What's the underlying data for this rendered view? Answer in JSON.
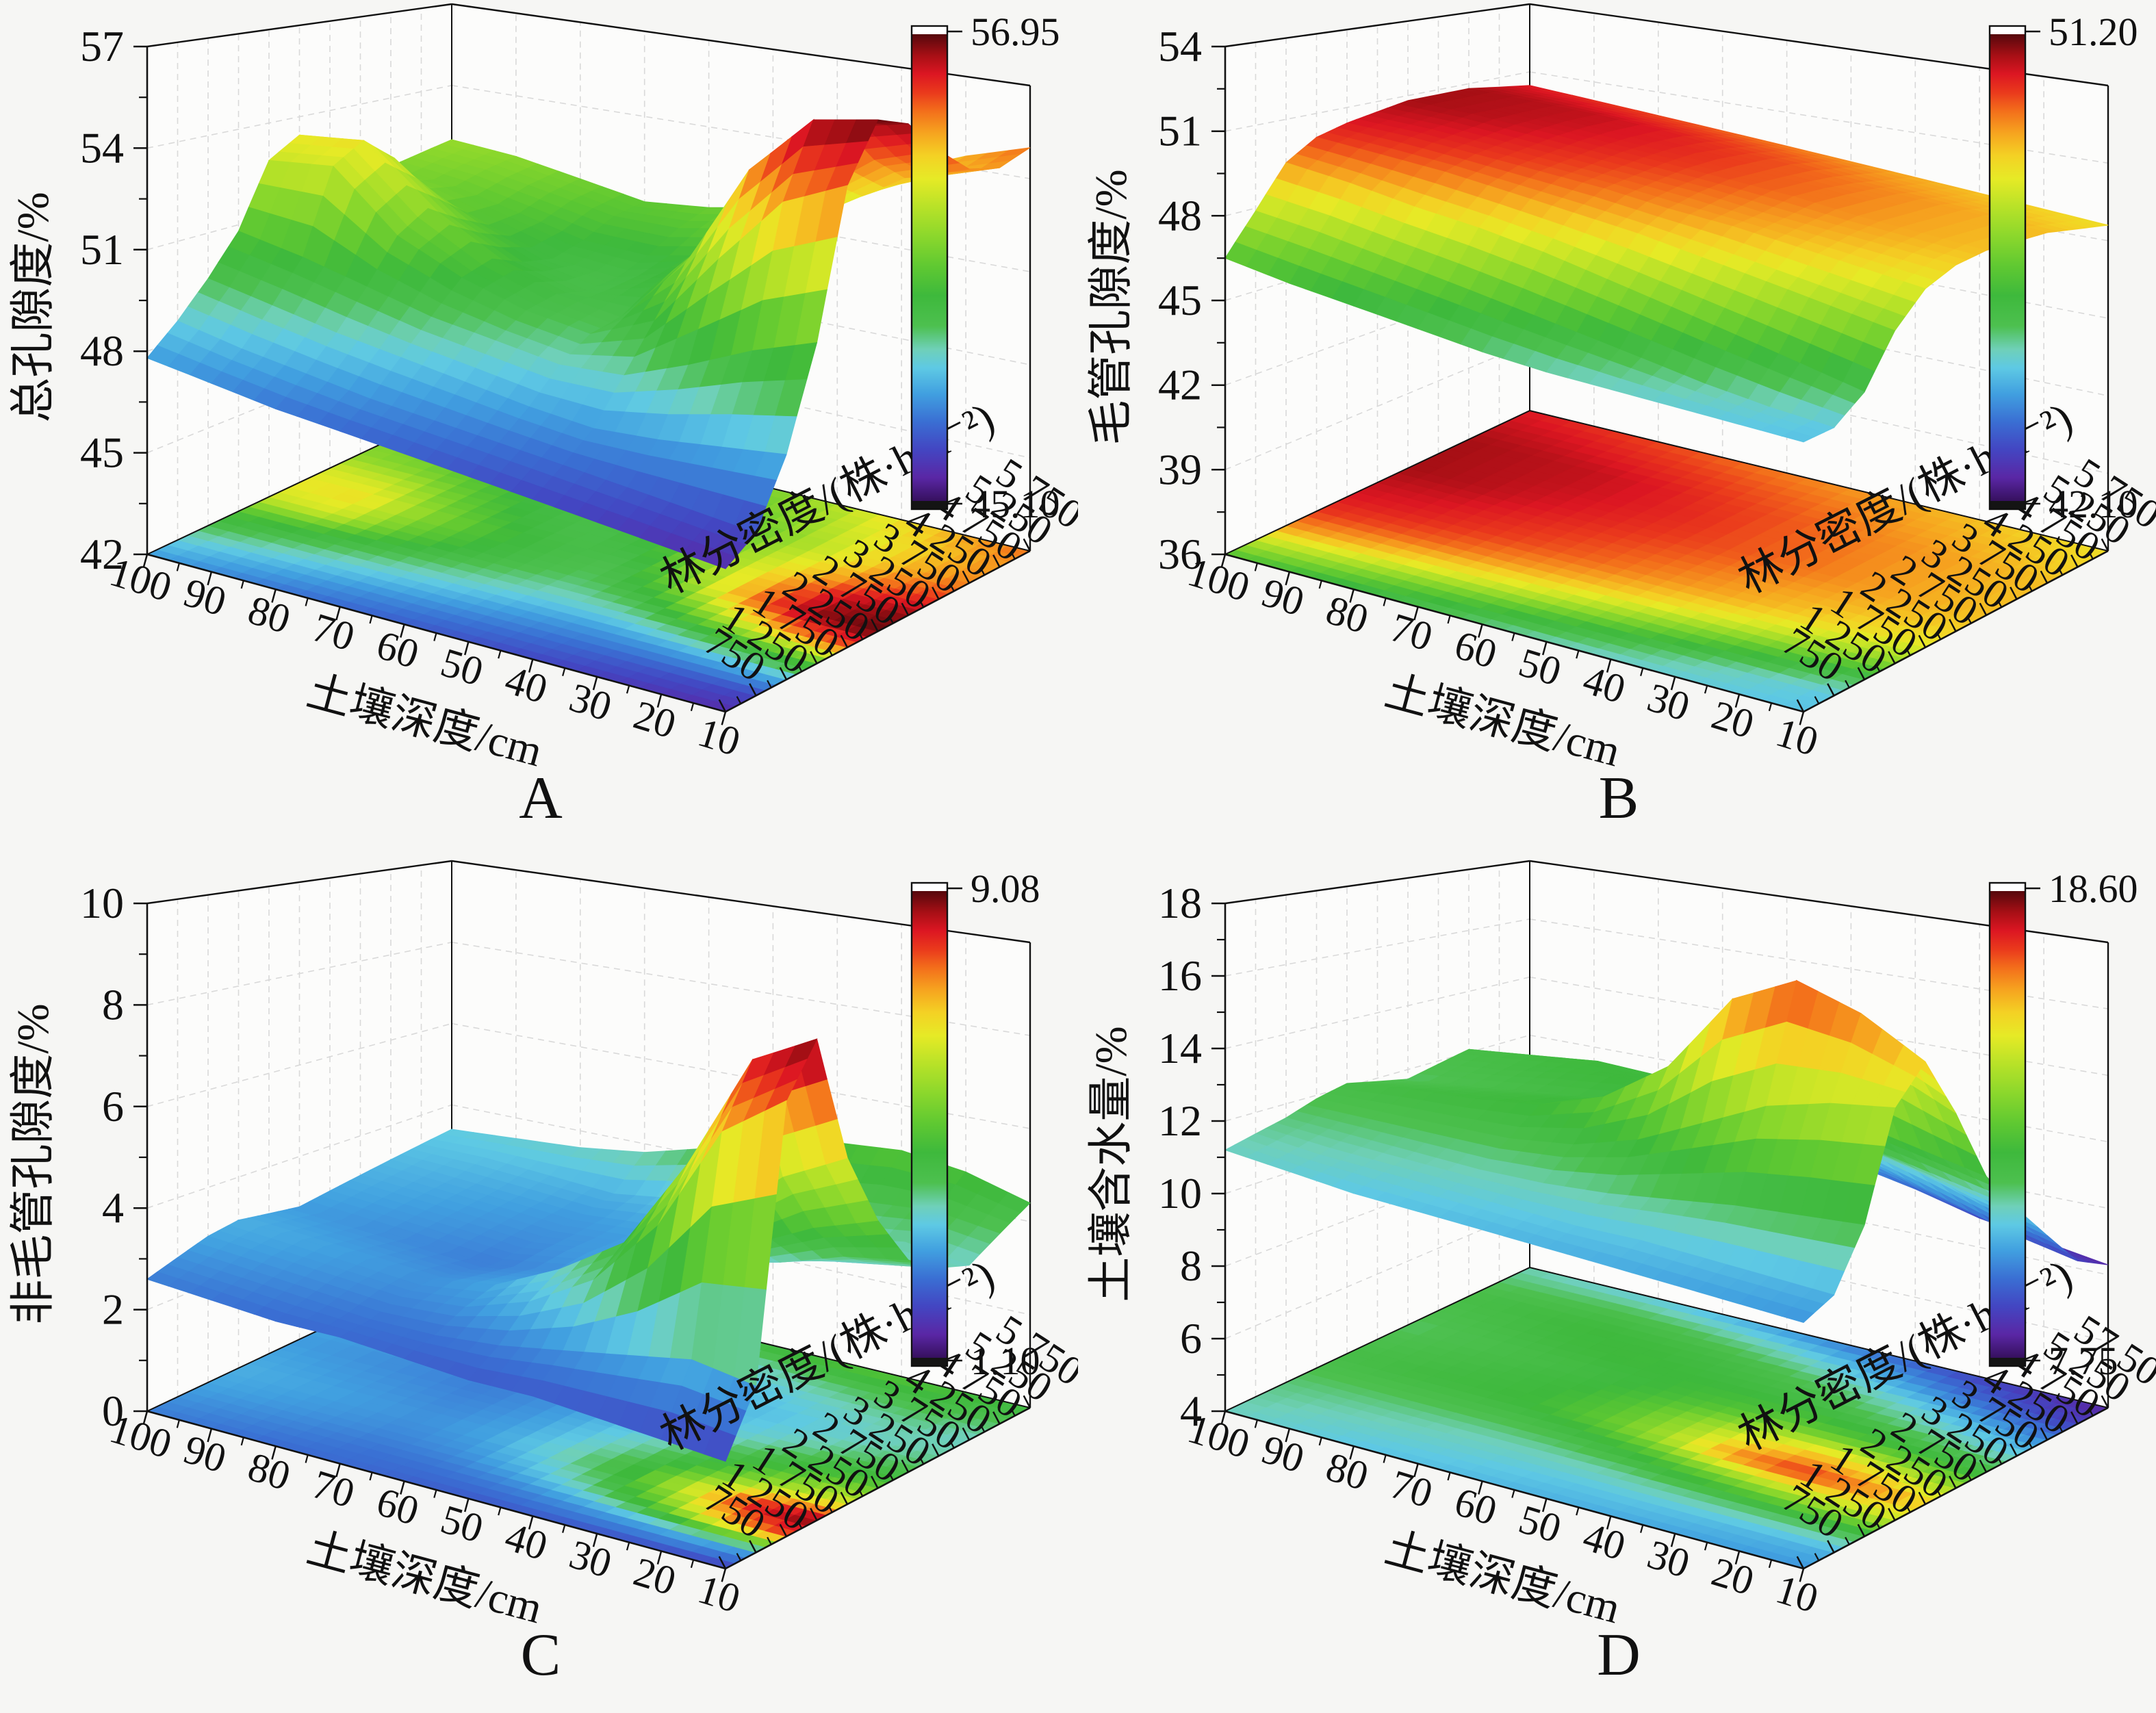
{
  "figure": {
    "background": "#f6f6f4",
    "wall_color": "#fcfcfb",
    "grid_color": "#d9d9d9",
    "axis_color": "#111111",
    "panel_letters": [
      "A",
      "B",
      "C",
      "D"
    ],
    "colormap": [
      [
        0.0,
        "#36105e"
      ],
      [
        0.05,
        "#5a27a5"
      ],
      [
        0.11,
        "#4346c2"
      ],
      [
        0.17,
        "#3a6fd3"
      ],
      [
        0.23,
        "#41a0e0"
      ],
      [
        0.285,
        "#5ec9e4"
      ],
      [
        0.325,
        "#6fd0b8"
      ],
      [
        0.375,
        "#4dc04f"
      ],
      [
        0.44,
        "#3eb93c"
      ],
      [
        0.5,
        "#5ec832"
      ],
      [
        0.565,
        "#8ad72c"
      ],
      [
        0.63,
        "#b8e228"
      ],
      [
        0.69,
        "#e6ea26"
      ],
      [
        0.74,
        "#f4d124"
      ],
      [
        0.79,
        "#f6a21f"
      ],
      [
        0.835,
        "#f36f1b"
      ],
      [
        0.875,
        "#ea3a1c"
      ],
      [
        0.915,
        "#dc1622"
      ],
      [
        0.955,
        "#a60f15"
      ],
      [
        1.0,
        "#55080c"
      ]
    ]
  },
  "chart_data": [
    {
      "type": "surface",
      "panel_letter": "A",
      "z_title": "总孔隙度/%",
      "x_title": "土壤深度/cm",
      "y_title": "林分密度/(株·hm⁻²)",
      "depth_cm": [
        100,
        90,
        80,
        70,
        60,
        50,
        40,
        30,
        20,
        10
      ],
      "density_per_hm2": [
        750,
        1250,
        1750,
        2250,
        2750,
        3250,
        3750,
        4250,
        4750,
        5250,
        5750
      ],
      "depth_tick_labels": [
        "100",
        "90",
        "80",
        "70",
        "60",
        "50",
        "40",
        "30",
        "20",
        "10"
      ],
      "density_tick_labels": [
        "750",
        "1 250",
        "1 750",
        "2 250",
        "2 750",
        "3 250",
        "3 750",
        "4 250",
        "4 750",
        "5 250",
        "5 750"
      ],
      "z_axis_min": 42,
      "z_axis_max": 57,
      "z_ticks": [
        42,
        45,
        48,
        51,
        54,
        57
      ],
      "colorbar": {
        "min": 45.1,
        "max": 56.95,
        "min_label": "45.10",
        "max_label": "56.95"
      },
      "rows_are": "depth_cm",
      "cols_are": "density_per_hm2",
      "values": [
        [
          47.8,
          48.6,
          49.6,
          50.8,
          52.8,
          53.4,
          53.0,
          51.8,
          51.6,
          51.8,
          52.0
        ],
        [
          47.5,
          48.2,
          49.2,
          50.4,
          53.0,
          53.6,
          52.8,
          51.5,
          51.3,
          51.6,
          51.8
        ],
        [
          47.2,
          47.9,
          48.8,
          49.9,
          51.2,
          51.8,
          51.2,
          50.7,
          50.8,
          51.2,
          51.4
        ],
        [
          47.0,
          47.6,
          48.5,
          49.4,
          50.3,
          50.6,
          50.2,
          50.0,
          50.3,
          50.8,
          51.0
        ],
        [
          46.8,
          47.4,
          48.2,
          49.1,
          49.7,
          49.9,
          49.7,
          49.8,
          50.2,
          50.8,
          51.2
        ],
        [
          46.6,
          47.2,
          47.9,
          48.8,
          49.4,
          49.6,
          50.2,
          50.4,
          50.6,
          51.2,
          51.6
        ],
        [
          46.4,
          47.0,
          47.7,
          48.9,
          50.2,
          51.6,
          52.2,
          52.0,
          51.6,
          52.0,
          52.4
        ],
        [
          46.2,
          46.8,
          47.8,
          49.6,
          52.4,
          54.8,
          54.4,
          53.6,
          53.0,
          53.2,
          53.6
        ],
        [
          46.0,
          46.6,
          48.0,
          50.4,
          54.4,
          56.6,
          56.2,
          55.0,
          54.2,
          54.0,
          54.4
        ],
        [
          45.8,
          46.4,
          48.2,
          51.0,
          55.2,
          56.9,
          56.6,
          55.6,
          54.8,
          54.6,
          55.0
        ]
      ]
    },
    {
      "type": "surface",
      "panel_letter": "B",
      "z_title": "毛管孔隙度/%",
      "x_title": "土壤深度/cm",
      "y_title": "林分密度/(株·hm⁻²)",
      "depth_cm": [
        100,
        90,
        80,
        70,
        60,
        50,
        40,
        30,
        20,
        10
      ],
      "density_per_hm2": [
        750,
        1250,
        1750,
        2250,
        2750,
        3250,
        3750,
        4250,
        4750,
        5250,
        5750
      ],
      "depth_tick_labels": [
        "100",
        "90",
        "80",
        "70",
        "60",
        "50",
        "40",
        "30",
        "20",
        "10"
      ],
      "density_tick_labels": [
        "750",
        "1 250",
        "1 750",
        "2 250",
        "2 750",
        "3 250",
        "3 750",
        "4 250",
        "4 750",
        "5 250",
        "5 750"
      ],
      "z_axis_min": 36,
      "z_axis_max": 54,
      "z_ticks": [
        36,
        39,
        42,
        45,
        48,
        51,
        54
      ],
      "colorbar": {
        "min": 42.1,
        "max": 51.2,
        "min_label": "42.10",
        "max_label": "51.20"
      },
      "rows_are": "depth_cm",
      "cols_are": "density_per_hm2",
      "values": [
        [
          46.5,
          47.9,
          49.4,
          50.1,
          50.4,
          50.6,
          50.8,
          50.8,
          50.8,
          50.6,
          50.4
        ],
        [
          46.1,
          47.6,
          49.1,
          49.9,
          50.3,
          50.5,
          50.7,
          50.7,
          50.7,
          50.5,
          50.2
        ],
        [
          45.8,
          47.2,
          48.7,
          49.7,
          50.1,
          50.3,
          50.5,
          50.6,
          50.6,
          50.3,
          50.0
        ],
        [
          45.5,
          46.8,
          48.4,
          49.4,
          49.9,
          50.1,
          50.3,
          50.4,
          50.4,
          50.1,
          49.8
        ],
        [
          45.2,
          46.4,
          48.0,
          49.1,
          49.7,
          49.9,
          50.1,
          50.2,
          50.1,
          49.9,
          49.6
        ],
        [
          45.0,
          46.0,
          47.5,
          48.8,
          49.4,
          49.7,
          49.9,
          49.9,
          49.9,
          49.7,
          49.4
        ],
        [
          44.9,
          45.6,
          47.0,
          48.4,
          49.2,
          49.4,
          49.7,
          49.7,
          49.6,
          49.4,
          49.2
        ],
        [
          44.8,
          45.2,
          46.5,
          48.0,
          48.9,
          49.2,
          49.4,
          49.4,
          49.4,
          49.2,
          49.0
        ],
        [
          44.7,
          44.9,
          46.0,
          47.6,
          48.6,
          49.0,
          49.2,
          49.2,
          49.2,
          49.0,
          48.8
        ],
        [
          44.6,
          44.7,
          45.5,
          47.2,
          48.3,
          48.8,
          49.0,
          49.0,
          49.0,
          48.8,
          48.6
        ]
      ]
    },
    {
      "type": "surface",
      "panel_letter": "C",
      "z_title": "非毛管孔隙度/%",
      "x_title": "土壤深度/cm",
      "y_title": "林分密度/(株·hm⁻²)",
      "depth_cm": [
        100,
        90,
        80,
        70,
        60,
        50,
        40,
        30,
        20,
        10
      ],
      "density_per_hm2": [
        750,
        1250,
        1750,
        2250,
        2750,
        3250,
        3750,
        4250,
        4750,
        5250,
        5750
      ],
      "depth_tick_labels": [
        "100",
        "90",
        "80",
        "70",
        "60",
        "50",
        "40",
        "30",
        "20",
        "10"
      ],
      "density_tick_labels": [
        "750",
        "1 250",
        "1 750",
        "2 250",
        "2 750",
        "3 250",
        "3 750",
        "4 250",
        "4 750",
        "5 250",
        "5 750"
      ],
      "z_axis_min": 0,
      "z_axis_max": 10,
      "z_ticks": [
        0,
        2,
        4,
        6,
        8,
        10
      ],
      "colorbar": {
        "min": 1.1,
        "max": 9.08,
        "min_label": "1.10",
        "max_label": "9.08"
      },
      "rows_are": "depth_cm",
      "cols_are": "density_per_hm2",
      "values": [
        [
          2.6,
          2.8,
          3.0,
          3.1,
          3.0,
          2.9,
          3.0,
          3.1,
          3.2,
          3.3,
          3.4
        ],
        [
          2.5,
          2.7,
          2.9,
          3.0,
          2.9,
          2.8,
          2.9,
          3.0,
          3.1,
          3.3,
          3.5
        ],
        [
          2.4,
          2.6,
          2.8,
          2.9,
          2.8,
          2.7,
          2.8,
          2.9,
          3.0,
          3.2,
          3.6
        ],
        [
          2.4,
          2.5,
          2.7,
          2.8,
          2.7,
          2.6,
          2.7,
          2.8,
          2.9,
          3.1,
          3.8
        ],
        [
          2.3,
          2.5,
          2.8,
          3.0,
          2.9,
          2.8,
          2.9,
          2.9,
          3.0,
          3.3,
          4.2
        ],
        [
          2.2,
          2.6,
          3.2,
          3.6,
          3.4,
          3.2,
          3.1,
          3.0,
          3.2,
          3.6,
          4.6
        ],
        [
          2.2,
          2.8,
          3.9,
          4.4,
          4.0,
          3.6,
          3.3,
          3.2,
          3.4,
          3.9,
          4.9
        ],
        [
          2.1,
          3.0,
          5.2,
          6.2,
          5.0,
          4.2,
          3.6,
          3.4,
          3.6,
          4.1,
          5.0
        ],
        [
          2.0,
          3.2,
          7.2,
          8.4,
          6.0,
          4.8,
          4.0,
          3.6,
          3.8,
          4.2,
          4.8
        ],
        [
          1.9,
          3.0,
          8.0,
          9.0,
          6.6,
          5.2,
          4.2,
          3.8,
          3.6,
          4.0,
          4.4
        ]
      ]
    },
    {
      "type": "surface",
      "panel_letter": "D",
      "z_title": "土壤含水量/%",
      "x_title": "土壤深度/cm",
      "y_title": "林分密度/(株·hm⁻²)",
      "depth_cm": [
        100,
        90,
        80,
        70,
        60,
        50,
        40,
        30,
        20,
        10
      ],
      "density_per_hm2": [
        750,
        1250,
        1750,
        2250,
        2750,
        3250,
        3750,
        4250,
        4750,
        5250,
        5750
      ],
      "depth_tick_labels": [
        "100",
        "90",
        "80",
        "70",
        "60",
        "50",
        "40",
        "30",
        "20",
        "10"
      ],
      "density_tick_labels": [
        "750",
        "1 250",
        "1 750",
        "2 250",
        "2 750",
        "3 250",
        "3 750",
        "4 250",
        "4 750",
        "5 250",
        "57 50"
      ],
      "z_axis_min": 4,
      "z_axis_max": 18,
      "z_ticks": [
        4,
        6,
        8,
        10,
        12,
        14,
        16,
        18
      ],
      "colorbar": {
        "min": 7.75,
        "max": 18.6,
        "min_label": "7.75",
        "max_label": "18.60"
      },
      "rows_are": "depth_cm",
      "cols_are": "density_per_hm2",
      "values": [
        [
          11.2,
          11.4,
          11.6,
          11.9,
          12.1,
          11.9,
          11.7,
          11.9,
          12.1,
          11.7,
          11.3
        ],
        [
          11.0,
          11.2,
          11.5,
          11.9,
          12.3,
          12.1,
          11.9,
          12.1,
          12.3,
          11.8,
          11.1
        ],
        [
          10.8,
          11.1,
          11.4,
          11.9,
          12.4,
          12.3,
          12.1,
          12.4,
          12.5,
          11.9,
          10.9
        ],
        [
          10.7,
          11.0,
          11.3,
          11.9,
          12.6,
          12.5,
          12.3,
          12.6,
          12.4,
          11.7,
          10.6
        ],
        [
          10.6,
          10.9,
          11.3,
          12.1,
          13.2,
          13.0,
          12.6,
          12.5,
          12.2,
          11.4,
          10.2
        ],
        [
          10.5,
          10.8,
          11.4,
          12.6,
          14.4,
          14.0,
          12.9,
          12.4,
          11.9,
          11.0,
          9.8
        ],
        [
          10.4,
          10.8,
          11.6,
          13.4,
          16.6,
          15.2,
          13.2,
          12.2,
          11.5,
          10.4,
          9.4
        ],
        [
          10.3,
          10.7,
          11.8,
          14.2,
          17.4,
          15.8,
          13.0,
          11.8,
          11.0,
          9.8,
          8.9
        ],
        [
          10.2,
          10.6,
          11.9,
          14.6,
          16.8,
          15.0,
          12.6,
          11.4,
          10.4,
          9.2,
          8.6
        ],
        [
          10.1,
          10.5,
          12.0,
          14.8,
          15.8,
          14.2,
          12.2,
          11.0,
          9.9,
          8.8,
          8.3
        ]
      ]
    }
  ]
}
